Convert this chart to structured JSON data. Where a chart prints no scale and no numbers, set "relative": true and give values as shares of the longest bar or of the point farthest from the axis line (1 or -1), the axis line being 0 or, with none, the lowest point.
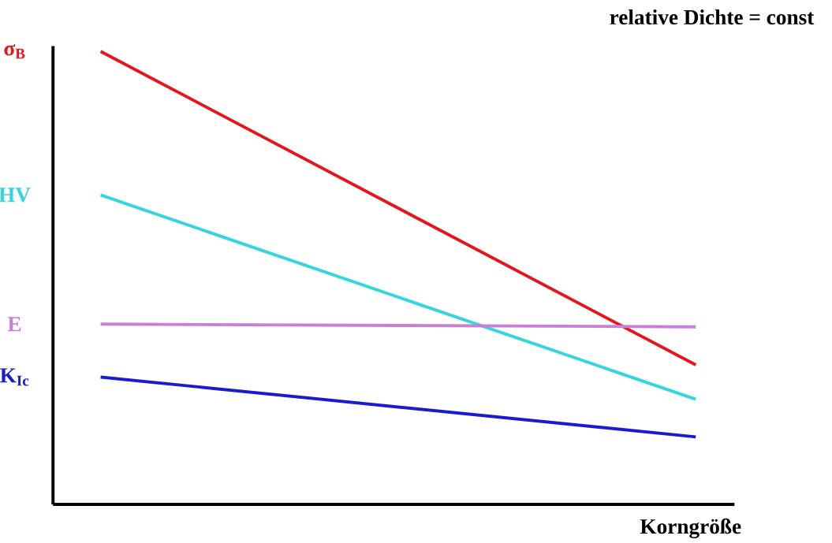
{
  "chart_data": {
    "type": "line",
    "relative": true,
    "legend": false,
    "categories": [
      null,
      null
    ],
    "xlabel": "Korngröße",
    "annotations": [
      "relative Dichte = const"
    ],
    "series": [
      {
        "name": "σ$_{B}$",
        "color": "#e8141c",
        "values": [
          1,
          0.308
        ]
      },
      {
        "name": "HV",
        "color": "#33d6dc",
        "values": [
          0.683,
          0.232
        ]
      },
      {
        "name": "E",
        "color": "#c97fd6",
        "values": [
          0.398,
          0.392
        ]
      },
      {
        "name": "K$_{Ic}$",
        "color": "#1a1ad0",
        "values": [
          0.281,
          0.149
        ]
      }
    ]
  }
}
